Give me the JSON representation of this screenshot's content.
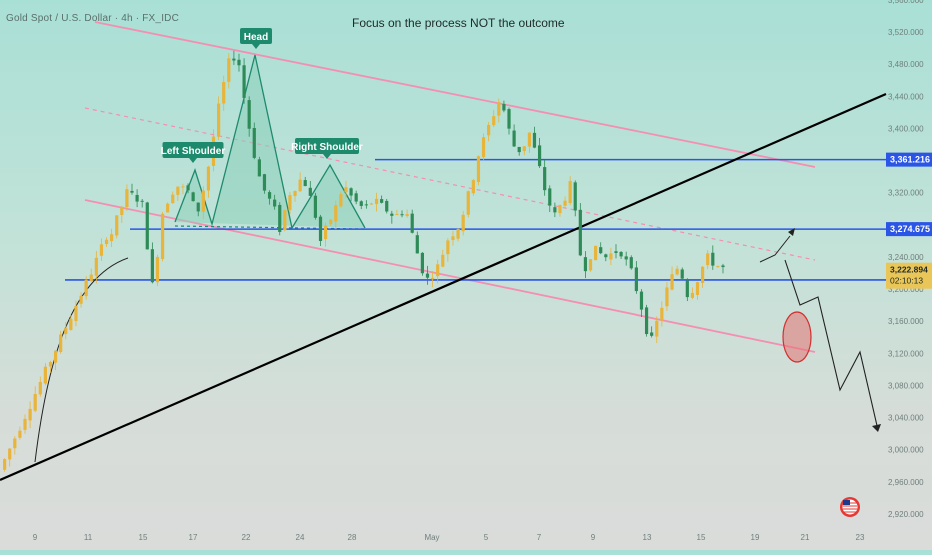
{
  "header": {
    "symbol_label": "Gold Spot / U.S. Dollar · 4h · FX_IDC",
    "headline": "Focus on the process NOT the outcome"
  },
  "chart_data": {
    "type": "candlestick",
    "title": "Gold Spot / U.S. Dollar · 4h · FX_IDC",
    "annotation": "Focus on the process NOT the outcome",
    "ylim": [
      2900,
      3560
    ],
    "x_ticks": [
      "9",
      "11",
      "15",
      "17",
      "22",
      "24",
      "28",
      "May",
      "5",
      "7",
      "9",
      "13",
      "15",
      "19",
      "21",
      "23"
    ],
    "y_ticks": [
      2920,
      2960,
      3000,
      3040,
      3080,
      3120,
      3160,
      3200,
      3240,
      3280,
      3320,
      3360,
      3400,
      3440,
      3480,
      3520,
      3560
    ],
    "y_tick_labels": [
      "2,920.000",
      "2,960.000",
      "3,000.000",
      "3,040.000",
      "3,080.000",
      "3,120.000",
      "3,160.000",
      "3,200.000",
      "3,240.000",
      "3,280.000",
      "3,320.000",
      "3,360.000",
      "3,400.000",
      "3,440.000",
      "3,480.000",
      "3,520.000",
      "3,560.000"
    ],
    "colors": {
      "up": "#e8b43a",
      "down": "#2e8b57",
      "horizontal_level": "#2a55e6",
      "trendline": "#000000",
      "channel": "#f48fb1",
      "pattern_fill": "#8ccfb9",
      "label_bg": "#1e8a6d",
      "target_circle": "#e57373",
      "last_price_bg": "#e9c657"
    },
    "price_levels": [
      {
        "label": "3,361.216",
        "value": 3361.216
      },
      {
        "label": "3,274.675",
        "value": 3274.675
      },
      {
        "label": "3,211.384",
        "value": 3211.384
      }
    ],
    "last_price": {
      "value_label": "3,222.894",
      "countdown": "02:10:13",
      "value": 3222.894
    },
    "support_level": 3222.894,
    "pattern_labels": [
      "Left Shoulder",
      "Head",
      "Right Shoulder"
    ],
    "pattern_points": [
      {
        "x": 10.2,
        "y": 3230
      },
      {
        "x": 11.6,
        "y": 3270
      },
      {
        "x": 12.0,
        "y": 3268
      },
      {
        "x": 13.7,
        "y": 3320
      },
      {
        "x": 15.3,
        "y": 3310
      },
      {
        "x": 16.5,
        "y": 3200
      },
      {
        "x": 17.6,
        "y": 3300
      },
      {
        "x": 19.0,
        "y": 3330
      },
      {
        "x": 20.5,
        "y": 3320
      },
      {
        "x": 21.2,
        "y": 3290
      },
      {
        "x": 22.3,
        "y": 3340
      },
      {
        "x": 23.5,
        "y": 3420
      },
      {
        "x": 24.6,
        "y": 3480
      },
      {
        "x": 25.6,
        "y": 3495
      },
      {
        "x": 26.6,
        "y": 3420
      },
      {
        "x": 27.4,
        "y": 3370
      },
      {
        "x": 28.2,
        "y": 3330
      },
      {
        "x": 29.6,
        "y": 3300
      },
      {
        "x": 30.2,
        "y": 3275
      },
      {
        "x": 31.3,
        "y": 3320
      },
      {
        "x": 32.7,
        "y": 3340
      },
      {
        "x": 33.9,
        "y": 3300
      },
      {
        "x": 34.6,
        "y": 3260
      },
      {
        "x": 36.2,
        "y": 3300
      },
      {
        "x": 37.1,
        "y": 3330
      },
      {
        "x": 38.2,
        "y": 3310
      },
      {
        "x": 39.3,
        "y": 3300
      },
      {
        "x": 40.3,
        "y": 3310
      },
      {
        "x": 41.6,
        "y": 3300
      },
      {
        "x": 42.6,
        "y": 3290
      },
      {
        "x": 43.8,
        "y": 3300
      },
      {
        "x": 44.9,
        "y": 3250
      },
      {
        "x": 46.0,
        "y": 3210
      },
      {
        "x": 47.4,
        "y": 3230
      },
      {
        "x": 48.2,
        "y": 3260
      },
      {
        "x": 49.6,
        "y": 3280
      },
      {
        "x": 50.9,
        "y": 3330
      },
      {
        "x": 51.7,
        "y": 3370
      },
      {
        "x": 53.0,
        "y": 3410
      },
      {
        "x": 53.9,
        "y": 3435
      },
      {
        "x": 54.5,
        "y": 3420
      },
      {
        "x": 55.3,
        "y": 3380
      },
      {
        "x": 56.4,
        "y": 3370
      },
      {
        "x": 57.0,
        "y": 3400
      },
      {
        "x": 57.8,
        "y": 3370
      },
      {
        "x": 58.9,
        "y": 3320
      },
      {
        "x": 59.8,
        "y": 3290
      },
      {
        "x": 60.8,
        "y": 3310
      },
      {
        "x": 61.6,
        "y": 3330
      },
      {
        "x": 62.2,
        "y": 3285
      },
      {
        "x": 62.9,
        "y": 3220
      },
      {
        "x": 64.0,
        "y": 3250
      },
      {
        "x": 65.4,
        "y": 3240
      },
      {
        "x": 66.9,
        "y": 3250
      },
      {
        "x": 68.2,
        "y": 3220
      },
      {
        "x": 69.2,
        "y": 3180
      },
      {
        "x": 70.2,
        "y": 3130
      },
      {
        "x": 71.2,
        "y": 3170
      },
      {
        "x": 72.3,
        "y": 3210
      },
      {
        "x": 73.3,
        "y": 3230
      },
      {
        "x": 74.3,
        "y": 3190
      },
      {
        "x": 75.2,
        "y": 3210
      },
      {
        "x": 76.3,
        "y": 3240
      },
      {
        "x": 77.3,
        "y": 3230
      },
      {
        "x": 78.5,
        "y": 3222.9
      }
    ]
  }
}
